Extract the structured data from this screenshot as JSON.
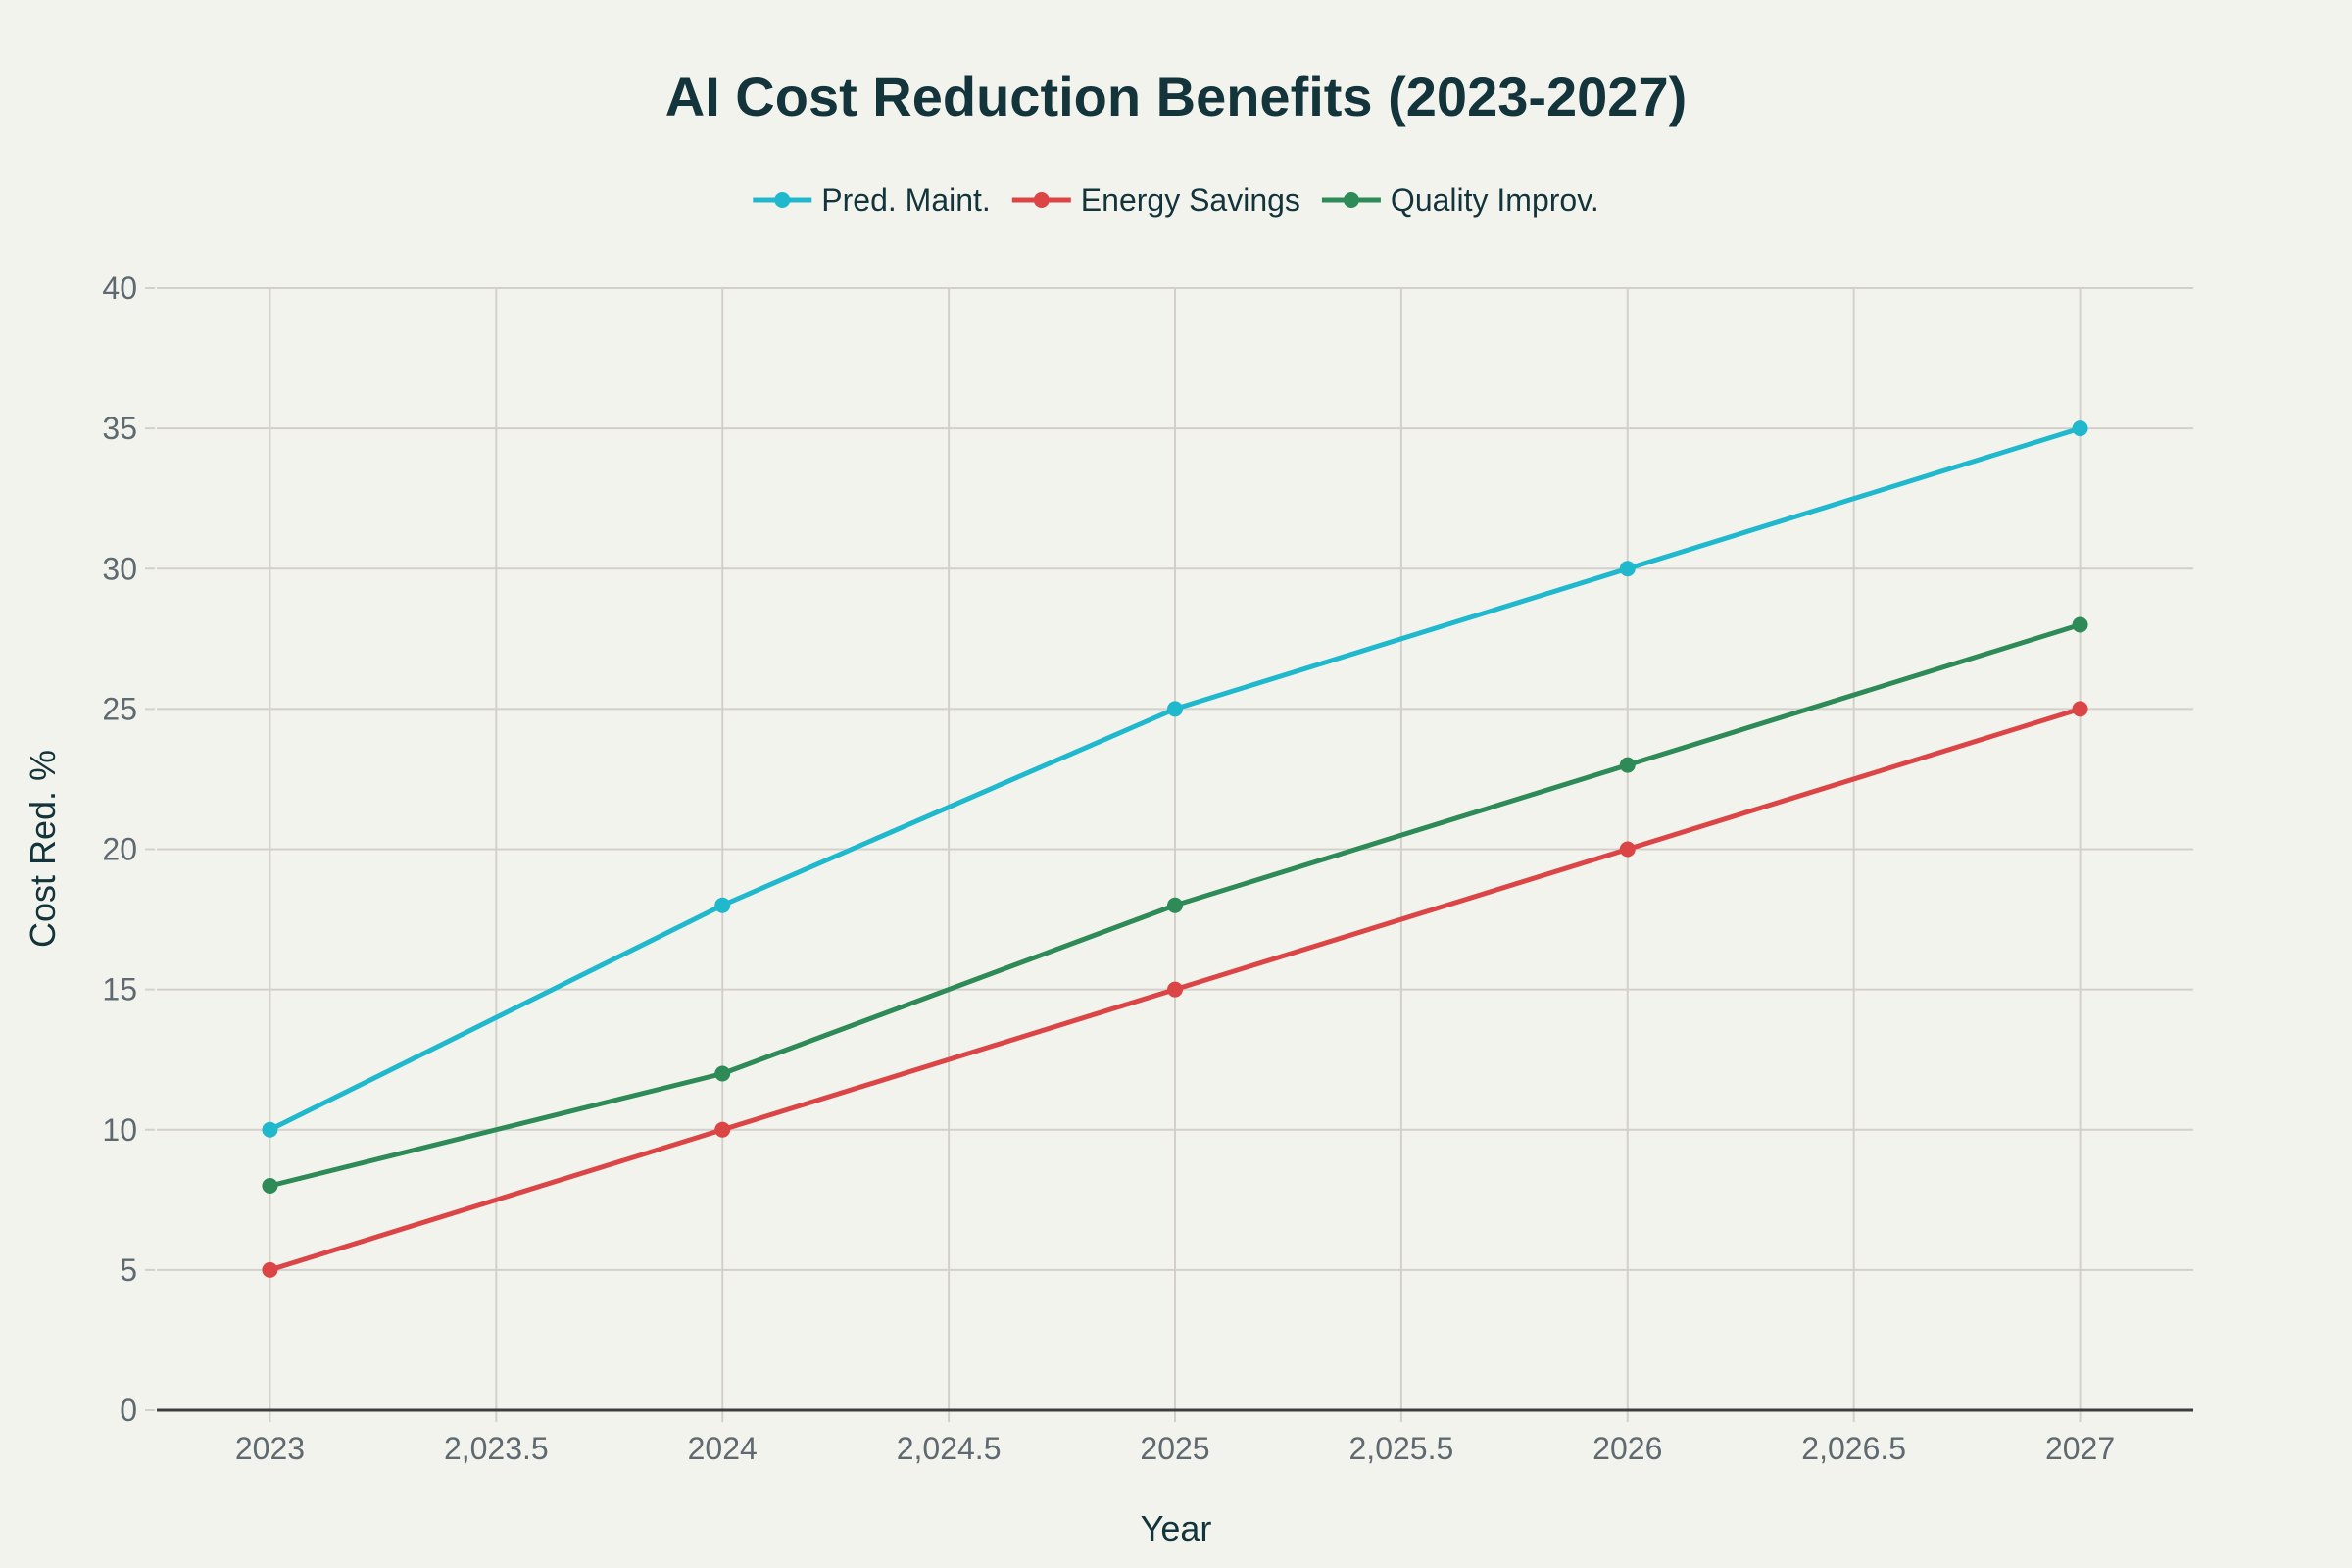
{
  "chart_data": {
    "type": "line",
    "title": "AI Cost Reduction Benefits (2023-2027)",
    "xlabel": "Year",
    "ylabel": "Cost Red. %",
    "x": [
      2023,
      2024,
      2025,
      2026,
      2027
    ],
    "xlim": [
      2022.75,
      2027.25
    ],
    "ylim": [
      0,
      40
    ],
    "x_ticks": [
      2023,
      2023.5,
      2024,
      2024.5,
      2025,
      2025.5,
      2026,
      2026.5,
      2027
    ],
    "x_tick_labels": [
      "2023",
      "2,023.5",
      "2024",
      "2,024.5",
      "2025",
      "2,025.5",
      "2026",
      "2,026.5",
      "2027"
    ],
    "y_ticks": [
      0,
      5,
      10,
      15,
      20,
      25,
      30,
      35,
      40
    ],
    "y_tick_labels": [
      "0",
      "5",
      "10",
      "15",
      "20",
      "25",
      "30",
      "35",
      "40"
    ],
    "grid": true,
    "legend_position": "top-center",
    "series": [
      {
        "name": "Pred. Maint.",
        "color": "#1fb8cd",
        "values": [
          10,
          18,
          25,
          30,
          35
        ]
      },
      {
        "name": "Energy Savings",
        "color": "#db4545",
        "values": [
          5,
          10,
          15,
          20,
          25
        ]
      },
      {
        "name": "Quality Improv.",
        "color": "#2e8b57",
        "values": [
          8,
          12,
          18,
          23,
          28
        ]
      }
    ]
  }
}
